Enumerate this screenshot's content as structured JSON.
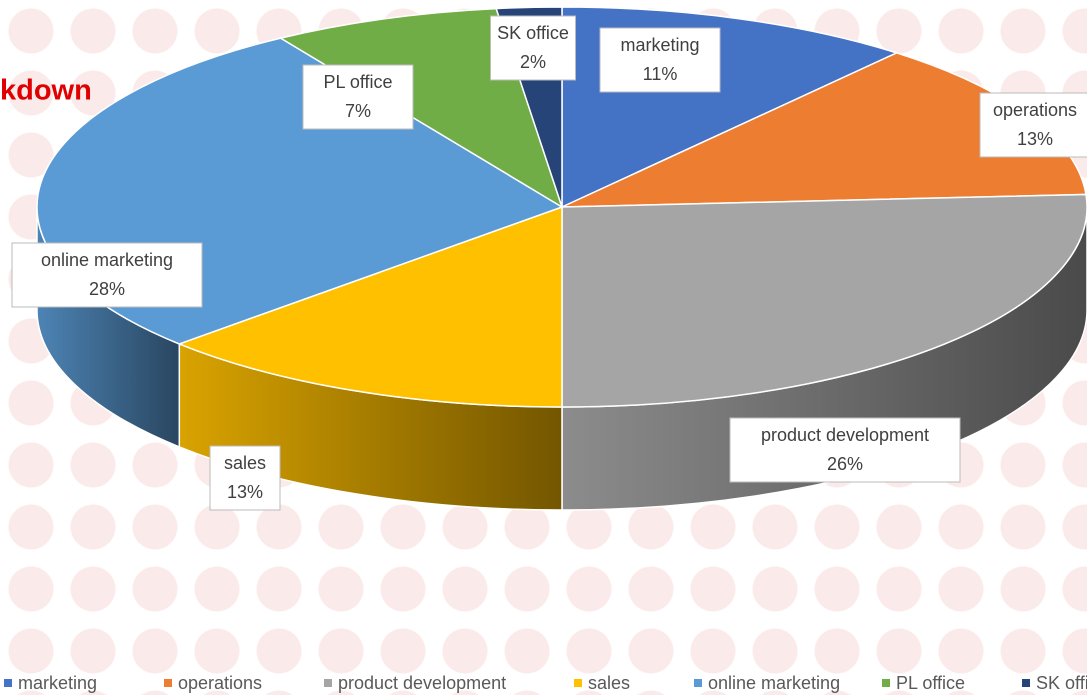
{
  "chart_data": {
    "type": "pie3d",
    "title": "kdown",
    "categories": [
      "marketing",
      "operations",
      "product development",
      "sales",
      "online marketing",
      "PL office",
      "SK office"
    ],
    "values": [
      11,
      13,
      26,
      13,
      28,
      7,
      2
    ],
    "value_labels": [
      "11%",
      "13%",
      "26%",
      "13%",
      "28%",
      "7%",
      "2%"
    ],
    "colors": [
      "#4472c4",
      "#ed7d31",
      "#a5a5a5",
      "#ffc000",
      "#5b9bd5",
      "#70ad47",
      "#264478"
    ],
    "legend": "bottom"
  }
}
